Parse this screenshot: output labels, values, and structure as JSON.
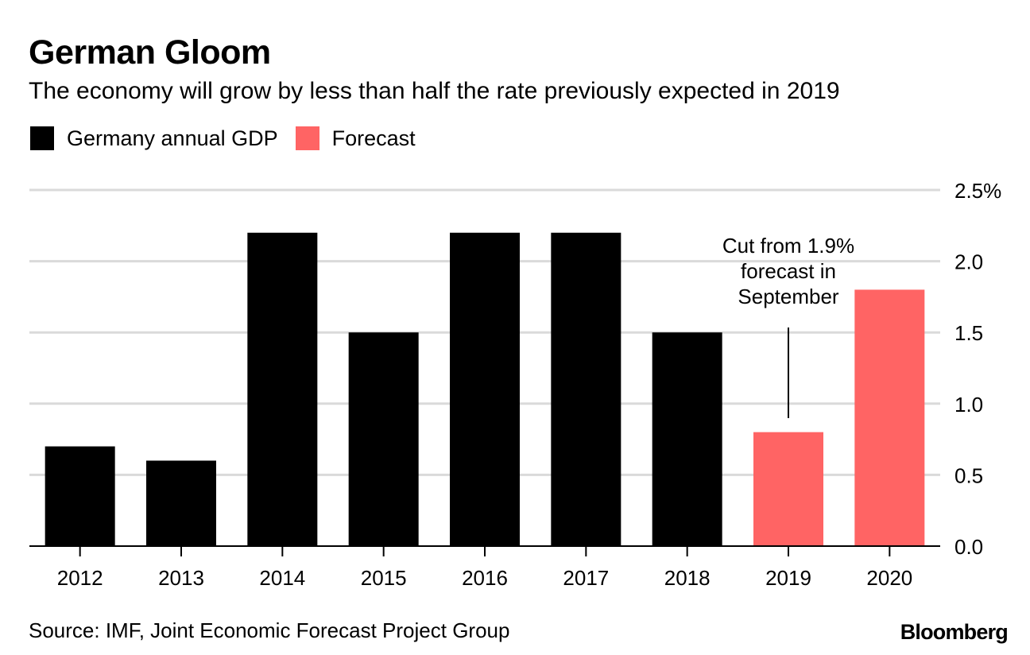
{
  "header": {
    "title": "German Gloom",
    "subtitle": "The economy will grow by less than half the rate previously expected in 2019"
  },
  "legend": {
    "items": [
      {
        "label": "Germany annual GDP",
        "color": "#000000"
      },
      {
        "label": "Forecast",
        "color": "#ff6464"
      }
    ]
  },
  "chart_data": {
    "type": "bar",
    "title": "German Gloom",
    "subtitle": "The economy will grow by less than half the rate previously expected in 2019",
    "xlabel": "",
    "ylabel": "",
    "categories": [
      "2012",
      "2013",
      "2014",
      "2015",
      "2016",
      "2017",
      "2018",
      "2019",
      "2020"
    ],
    "series": [
      {
        "name": "Germany annual GDP",
        "color": "#000000",
        "values": [
          0.7,
          0.6,
          2.2,
          1.5,
          2.2,
          2.2,
          1.5,
          null,
          null
        ]
      },
      {
        "name": "Forecast",
        "color": "#ff6464",
        "values": [
          null,
          null,
          null,
          null,
          null,
          null,
          null,
          0.8,
          1.8
        ]
      }
    ],
    "ylim": [
      0,
      2.5
    ],
    "yticks": [
      0,
      0.5,
      1.0,
      1.5,
      2.0,
      2.5
    ],
    "ytick_labels": [
      "0.0",
      "0.5",
      "1.0",
      "1.5",
      "2.0",
      "2.5%"
    ],
    "y_axis_side": "right",
    "grid": true,
    "legend_position": "top-left",
    "annotation": {
      "category": "2019",
      "lines": [
        "Cut from 1.9%",
        "forecast in",
        "September"
      ]
    }
  },
  "footer": {
    "source": "Source: IMF, Joint Economic Forecast Project Group",
    "brand": "Bloomberg"
  }
}
